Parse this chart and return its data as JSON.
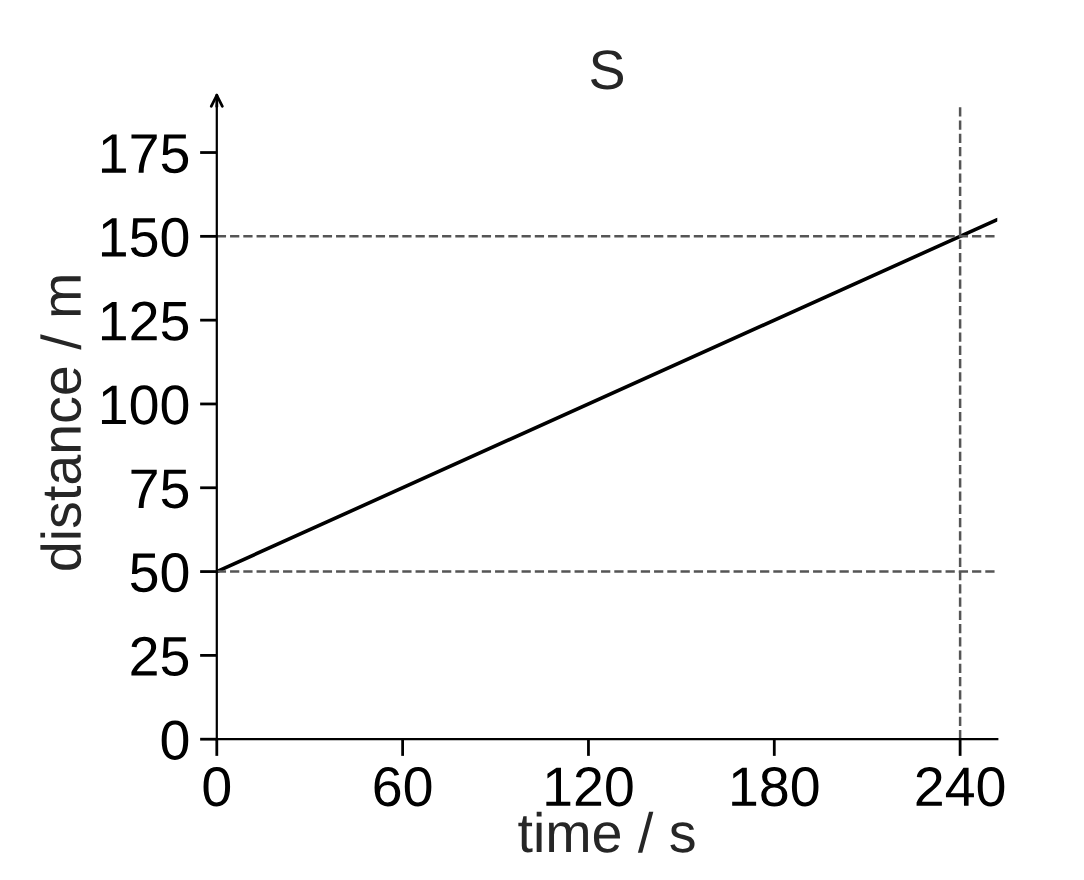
{
  "chart_data": {
    "type": "line",
    "title": "S",
    "xlabel": "time / s",
    "ylabel": "distance / m",
    "x": [
      0,
      252
    ],
    "series": [
      {
        "color": "#000000",
        "values": [
          50,
          155
        ]
      }
    ],
    "xlim": [
      0,
      252
    ],
    "ylim": [
      0,
      189
    ],
    "xticks": [
      0,
      60,
      120,
      180,
      240
    ],
    "yticks": [
      0,
      25,
      50,
      75,
      100,
      125,
      150,
      175
    ],
    "ref_lines": [
      {
        "axis": "y",
        "value": 150,
        "color": "#555555",
        "line_style": "dashed"
      },
      {
        "axis": "y",
        "value": 50,
        "color": "#555555",
        "line_style": "dashed"
      },
      {
        "axis": "x",
        "value": 240,
        "color": "#555555",
        "line_style": "dashed"
      }
    ],
    "grid": false,
    "legend": false,
    "marker": "none",
    "line_style": "solid"
  }
}
